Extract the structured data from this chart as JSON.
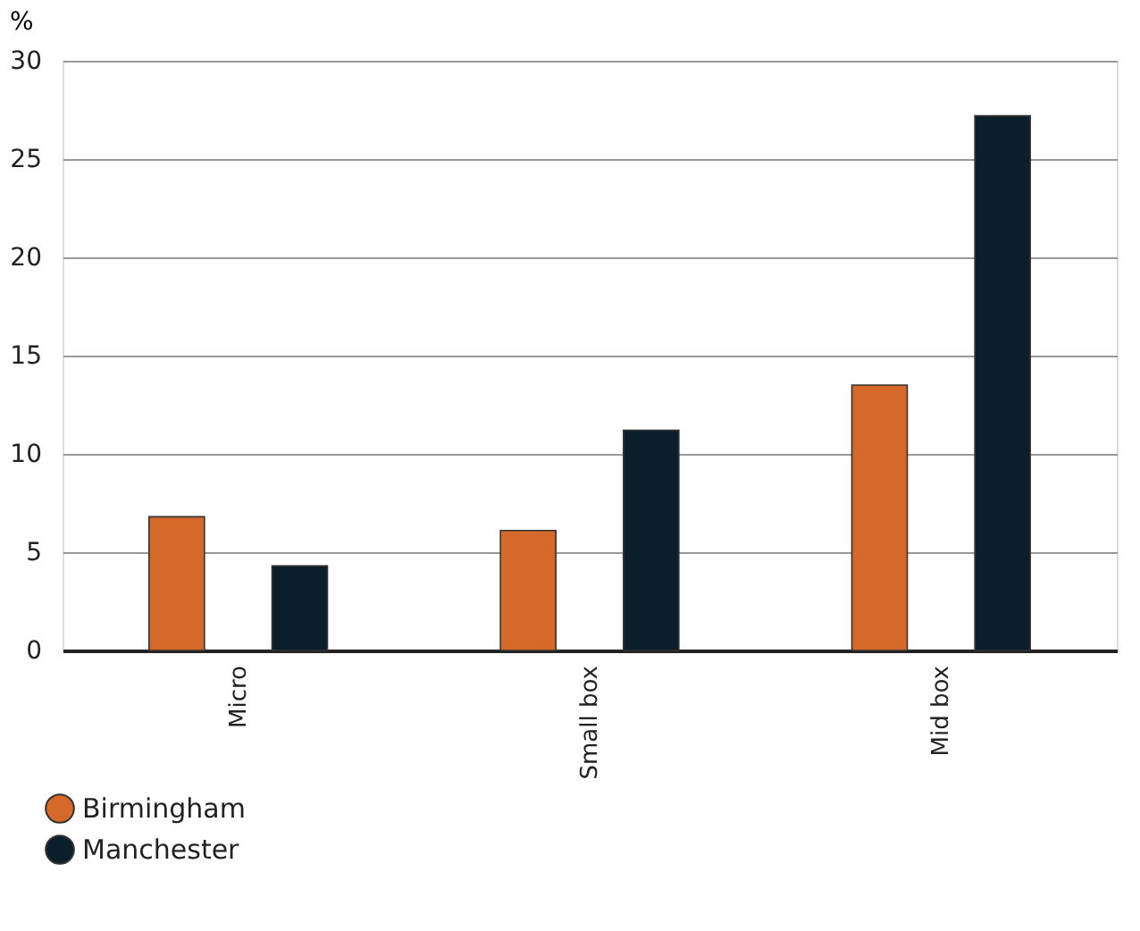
{
  "chart_data": {
    "type": "bar",
    "ylabel": "%",
    "categories": [
      "Micro",
      "Small box",
      "Mid box"
    ],
    "series": [
      {
        "name": "Birmingham",
        "color": "#d4692a",
        "values": [
          6.8,
          6.1,
          13.5
        ]
      },
      {
        "name": "Manchester",
        "color": "#0b1e2b",
        "values": [
          4.3,
          11.2,
          27.2
        ]
      }
    ],
    "ylim": [
      0,
      30
    ],
    "yticks": [
      0,
      5,
      10,
      15,
      20,
      25,
      30
    ],
    "grid": "y",
    "legend": "bottom left"
  }
}
